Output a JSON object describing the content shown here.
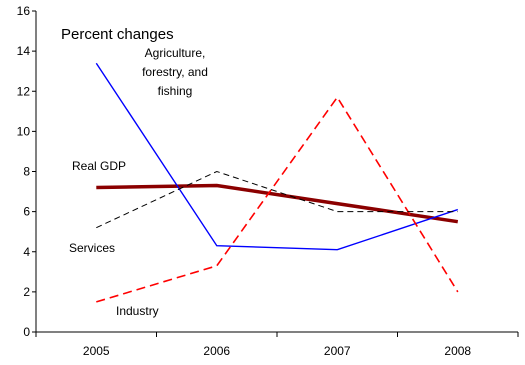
{
  "chart_data": {
    "type": "line",
    "title": "Percent changes",
    "xlabel": "",
    "ylabel": "",
    "categories": [
      "2005",
      "2006",
      "2007",
      "2008"
    ],
    "ylim": [
      0,
      16
    ],
    "yticks": [
      0,
      2,
      4,
      6,
      8,
      10,
      12,
      14,
      16
    ],
    "grid": false,
    "legend": "none",
    "series": [
      {
        "name": "Real GDP",
        "values": [
          7.2,
          7.3,
          6.4,
          5.5
        ],
        "color": "#8b0000",
        "style": "solid-thick"
      },
      {
        "name": "Agriculture, forestry, and fishing",
        "values": [
          13.4,
          4.3,
          4.1,
          6.1
        ],
        "color": "#0000ff",
        "style": "solid"
      },
      {
        "name": "Industry",
        "values": [
          1.5,
          3.3,
          11.7,
          2.0
        ],
        "color": "#ff0000",
        "style": "dashed"
      },
      {
        "name": "Services",
        "values": [
          5.2,
          8.0,
          6.0,
          6.0
        ],
        "color": "#000000",
        "style": "dashed-thin"
      }
    ],
    "annotations": [
      {
        "text": "Real GDP"
      },
      {
        "lines": [
          "Agriculture,",
          "forestry, and",
          "fishing"
        ]
      },
      {
        "text": "Services"
      },
      {
        "text": "Industry"
      }
    ]
  }
}
